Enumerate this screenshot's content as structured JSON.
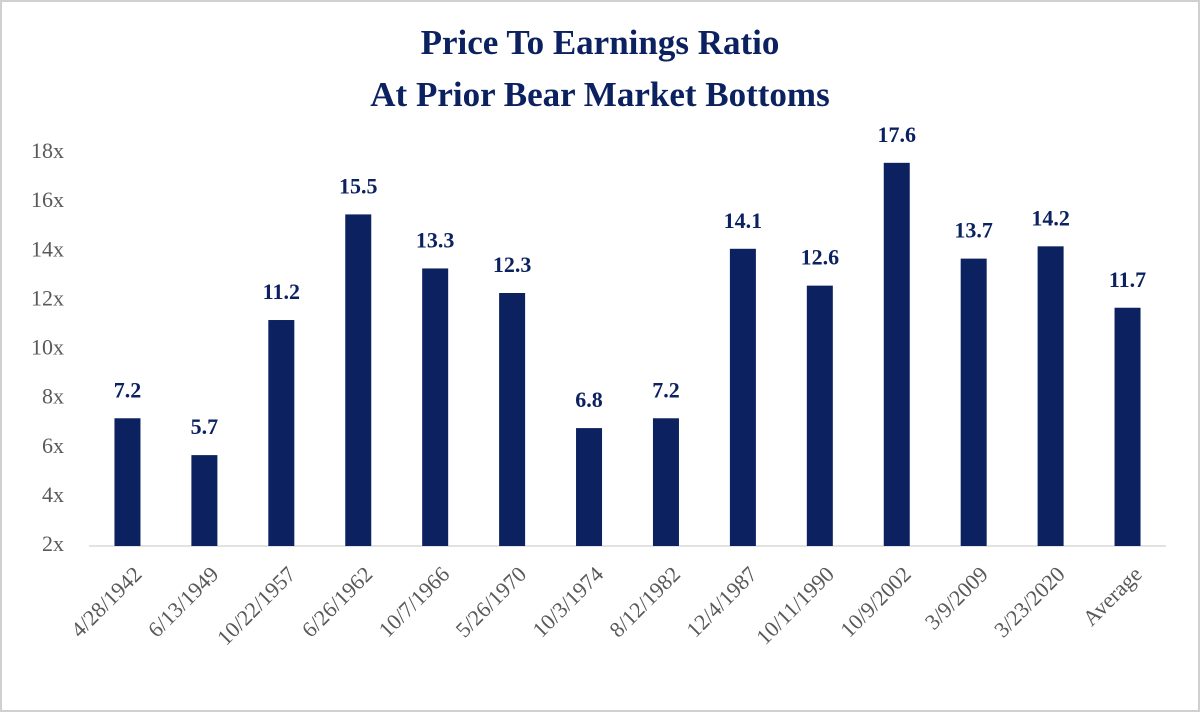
{
  "chart_data": {
    "type": "bar",
    "title": [
      "Price To Earnings Ratio",
      "At Prior Bear Market Bottoms"
    ],
    "categories": [
      "4/28/1942",
      "6/13/1949",
      "10/22/1957",
      "6/26/1962",
      "10/7/1966",
      "5/26/1970",
      "10/3/1974",
      "8/12/1982",
      "12/4/1987",
      "10/11/1990",
      "10/9/2002",
      "3/9/2009",
      "3/23/2020",
      "Average"
    ],
    "values": [
      7.2,
      5.7,
      11.2,
      15.5,
      13.3,
      12.3,
      6.8,
      7.2,
      14.1,
      12.6,
      17.6,
      13.7,
      14.2,
      11.7
    ],
    "color": "#0b2160",
    "ylim": [
      2,
      18
    ],
    "yticks": [
      {
        "value": 2,
        "label": "2x"
      },
      {
        "value": 4,
        "label": "4x"
      },
      {
        "value": 6,
        "label": "6x"
      },
      {
        "value": 8,
        "label": "8x"
      },
      {
        "value": 10,
        "label": "10x"
      },
      {
        "value": 12,
        "label": "12x"
      },
      {
        "value": 14,
        "label": "14x"
      },
      {
        "value": 16,
        "label": "16x"
      },
      {
        "value": 18,
        "label": "18x"
      }
    ],
    "grid": false
  }
}
